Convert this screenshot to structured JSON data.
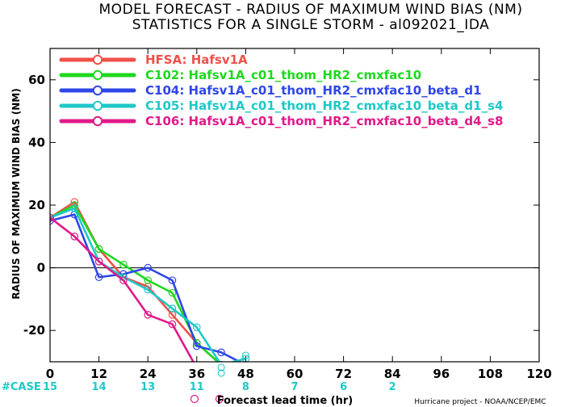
{
  "chart_data": {
    "type": "line",
    "title": "MODEL FORECAST - RADIUS OF MAXIMUM WIND BIAS (NM)",
    "subtitle": "STATISTICS FOR A SINGLE STORM - al092021_IDA",
    "xlabel": "Forecast lead time (hr)",
    "ylabel": "RADIUS OF MAXIMUM WIND BIAS (NM)",
    "xlim": [
      0,
      120
    ],
    "ylim": [
      -30,
      70
    ],
    "xticks": [
      "0",
      "12",
      "24",
      "36",
      "48",
      "60",
      "72",
      "84",
      "96",
      "108",
      "120"
    ],
    "yticks": [
      "-20",
      "0",
      "20",
      "40",
      "60"
    ],
    "grid": false,
    "zero_line": true,
    "legend_position": "top-left",
    "series": [
      {
        "name": "HFSA: Hafsv1A",
        "color": "#f0504a",
        "x": [
          0,
          6,
          12,
          18,
          24,
          30,
          36,
          42
        ],
        "y": [
          16,
          21,
          6,
          -3,
          -6,
          -15,
          -24,
          -31
        ]
      },
      {
        "name": "C102: Hafsv1A_c01_thom_HR2_cmxfac10",
        "color": "#1ed81e",
        "x": [
          0,
          6,
          12,
          18,
          24,
          30,
          36,
          42
        ],
        "y": [
          16,
          20,
          6,
          1,
          -4,
          -8,
          -24,
          -31
        ]
      },
      {
        "name": "C104: Hafsv1A_c01_thom_HR2_cmxfac10_beta_d1",
        "color": "#2e46e8",
        "x": [
          0,
          6,
          12,
          18,
          24,
          30,
          36,
          42,
          48
        ],
        "y": [
          15,
          17,
          -3,
          -2,
          0,
          -4,
          -25,
          -27,
          -31
        ]
      },
      {
        "name": "C105: Hafsv1A_c01_thom_HR2_cmxfac10_beta_d1_s4",
        "color": "#1fc8c8",
        "x": [
          0,
          6,
          12,
          18,
          24,
          30,
          36,
          42,
          48
        ],
        "y": [
          16,
          19,
          2,
          -3,
          -7,
          -13,
          -19,
          -31,
          -29
        ]
      },
      {
        "name": "C106: Hafsv1A_c01_thom_HR2_cmxfac10_beta_d4_s8",
        "color": "#e01a8a",
        "x": [
          0,
          6,
          12,
          18,
          24,
          30,
          36
        ],
        "y": [
          16,
          10,
          2,
          -4,
          -15,
          -18,
          -32
        ]
      }
    ],
    "case_label": "#CASE",
    "case_counts": [
      {
        "x": 0,
        "n": "15"
      },
      {
        "x": 12,
        "n": "14"
      },
      {
        "x": 24,
        "n": "13"
      },
      {
        "x": 36,
        "n": "11"
      },
      {
        "x": 48,
        "n": "8"
      },
      {
        "x": 60,
        "n": "7"
      },
      {
        "x": 72,
        "n": "6"
      },
      {
        "x": 84,
        "n": "2"
      }
    ],
    "credit": "Hurricane project - NOAA/NCEP/EMC",
    "colors": {
      "axis": "#000000",
      "case_text": "#1fc8c8",
      "outside_markers": "#e01a8a"
    }
  }
}
